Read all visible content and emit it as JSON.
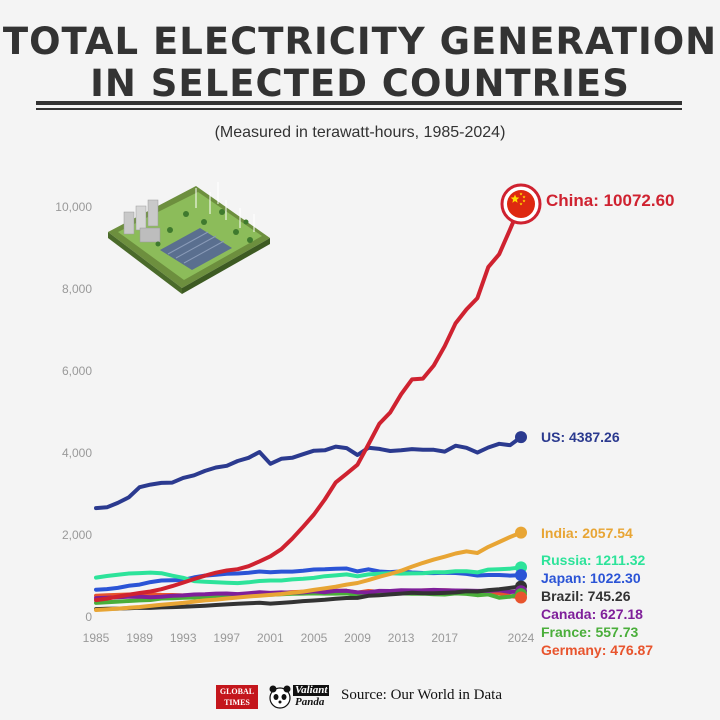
{
  "header": {
    "title_line1": "TOTAL ELECTRICITY GENERATION",
    "title_line2": "IN SELECTED COUNTRIES",
    "subtitle": "(Measured in terawatt-hours, 1985-2024)"
  },
  "footer": {
    "logo1_line1": "GLOBAL",
    "logo1_line2": "TIMES",
    "logo2_line1": "Valiant",
    "logo2_line2": "Panda",
    "source": "Source: Our World in Data"
  },
  "chart_data": {
    "type": "line",
    "title": "TOTAL ELECTRICITY GENERATION IN SELECTED COUNTRIES",
    "subtitle": "(Measured in terawatt-hours, 1985-2024)",
    "xlabel": "",
    "ylabel": "",
    "xlim": [
      1985,
      2024
    ],
    "ylim": [
      0,
      10000
    ],
    "x_ticks": [
      "1985",
      "1989",
      "1993",
      "1997",
      "2001",
      "2005",
      "2009",
      "2013",
      "2017",
      "2024"
    ],
    "y_ticks": [
      "0",
      "2,000",
      "4,000",
      "6,000",
      "8,000",
      "10,000"
    ],
    "grid": false,
    "x": [
      1985,
      1986,
      1987,
      1988,
      1989,
      1990,
      1991,
      1992,
      1993,
      1994,
      1995,
      1996,
      1997,
      1998,
      1999,
      2000,
      2001,
      2002,
      2003,
      2004,
      2005,
      2006,
      2007,
      2008,
      2009,
      2010,
      2011,
      2012,
      2013,
      2014,
      2015,
      2016,
      2017,
      2018,
      2019,
      2020,
      2021,
      2022,
      2023,
      2024
    ],
    "series": [
      {
        "name": "China",
        "end_label": "China: 10072.60",
        "color": "#cf2230",
        "values": [
          411,
          449,
          497,
          545,
          585,
          621,
          677,
          754,
          839,
          928,
          1007,
          1081,
          1134,
          1167,
          1239,
          1356,
          1480,
          1654,
          1910,
          2200,
          2500,
          2866,
          3282,
          3496,
          3714,
          4208,
          4713,
          4988,
          5432,
          5794,
          5815,
          6133,
          6604,
          7166,
          7503,
          7779,
          8534,
          8849,
          9456,
          10072.6
        ]
      },
      {
        "name": "US",
        "end_label": "US: 4387.26",
        "color": "#2b3a8f",
        "values": [
          2657,
          2676,
          2782,
          2918,
          3165,
          3230,
          3270,
          3279,
          3393,
          3456,
          3564,
          3647,
          3688,
          3805,
          3883,
          4025,
          3737,
          3858,
          3883,
          3971,
          4055,
          4065,
          4157,
          4119,
          3950,
          4126,
          4100,
          4048,
          4066,
          4094,
          4077,
          4077,
          4034,
          4178,
          4128,
          4010,
          4133,
          4225,
          4190,
          4387.26
        ]
      },
      {
        "name": "India",
        "end_label": "India: 2057.54",
        "color": "#e8a534",
        "values": [
          170,
          185,
          205,
          225,
          245,
          270,
          300,
          320,
          345,
          375,
          405,
          425,
          450,
          475,
          500,
          520,
          540,
          560,
          590,
          620,
          660,
          700,
          740,
          790,
          830,
          900,
          980,
          1050,
          1130,
          1230,
          1320,
          1400,
          1470,
          1550,
          1600,
          1560,
          1710,
          1830,
          1950,
          2057.54
        ]
      },
      {
        "name": "Russia",
        "end_label": "Russia: 1211.32",
        "color": "#2de39a",
        "values": [
          962,
          1000,
          1030,
          1060,
          1070,
          1082,
          1068,
          1008,
          956,
          876,
          860,
          847,
          834,
          827,
          846,
          877,
          891,
          891,
          916,
          932,
          953,
          995,
          1015,
          1040,
          992,
          1038,
          1055,
          1069,
          1059,
          1064,
          1067,
          1091,
          1091,
          1115,
          1118,
          1089,
          1157,
          1167,
          1178,
          1211.32
        ]
      },
      {
        "name": "Japan",
        "end_label": "Japan: 1022.30",
        "color": "#2b54d6",
        "values": [
          665,
          680,
          710,
          760,
          790,
          850,
          890,
          895,
          905,
          965,
          1009,
          1030,
          1056,
          1061,
          1080,
          1110,
          1090,
          1107,
          1108,
          1130,
          1158,
          1164,
          1176,
          1183,
          1113,
          1164,
          1109,
          1096,
          1111,
          1085,
          1072,
          1071,
          1080,
          1072,
          1052,
          1013,
          1025,
          1024,
          1010,
          1022.3
        ]
      },
      {
        "name": "Brazil",
        "end_label": "Brazil: 745.26",
        "color": "#333333",
        "values": [
          193,
          200,
          205,
          215,
          225,
          223,
          235,
          242,
          252,
          260,
          276,
          292,
          308,
          321,
          333,
          349,
          328,
          345,
          364,
          387,
          403,
          419,
          445,
          463,
          466,
          516,
          531,
          552,
          570,
          590,
          581,
          579,
          589,
          601,
          626,
          621,
          656,
          677,
          710,
          745.26
        ]
      },
      {
        "name": "Canada",
        "end_label": "Canada: 627.18",
        "color": "#7f1f9a",
        "values": [
          460,
          470,
          483,
          496,
          497,
          482,
          496,
          520,
          528,
          549,
          554,
          570,
          573,
          558,
          580,
          605,
          589,
          601,
          590,
          600,
          626,
          606,
          636,
          638,
          600,
          599,
          636,
          633,
          651,
          649,
          648,
          661,
          652,
          646,
          645,
          636,
          636,
          651,
          610,
          627.18
        ]
      },
      {
        "name": "France",
        "end_label": "France: 557.73",
        "color": "#4aae3a",
        "values": [
          345,
          361,
          375,
          390,
          404,
          415,
          450,
          458,
          470,
          475,
          493,
          510,
          503,
          511,
          520,
          540,
          545,
          555,
          565,
          570,
          575,
          570,
          570,
          575,
          535,
          570,
          565,
          565,
          575,
          565,
          570,
          557,
          550,
          575,
          563,
          531,
          552,
          470,
          496,
          557.73
        ]
      },
      {
        "name": "Germany",
        "end_label": "Germany: 476.87",
        "color": "#e8542d",
        "values": [
          520,
          530,
          540,
          550,
          555,
          550,
          540,
          537,
          526,
          528,
          537,
          555,
          552,
          557,
          556,
          576,
          586,
          586,
          608,
          616,
          622,
          637,
          640,
          640,
          596,
          633,
          613,
          630,
          638,
          627,
          648,
          650,
          653,
          643,
          609,
          573,
          588,
          577,
          510,
          476.87
        ]
      }
    ]
  }
}
